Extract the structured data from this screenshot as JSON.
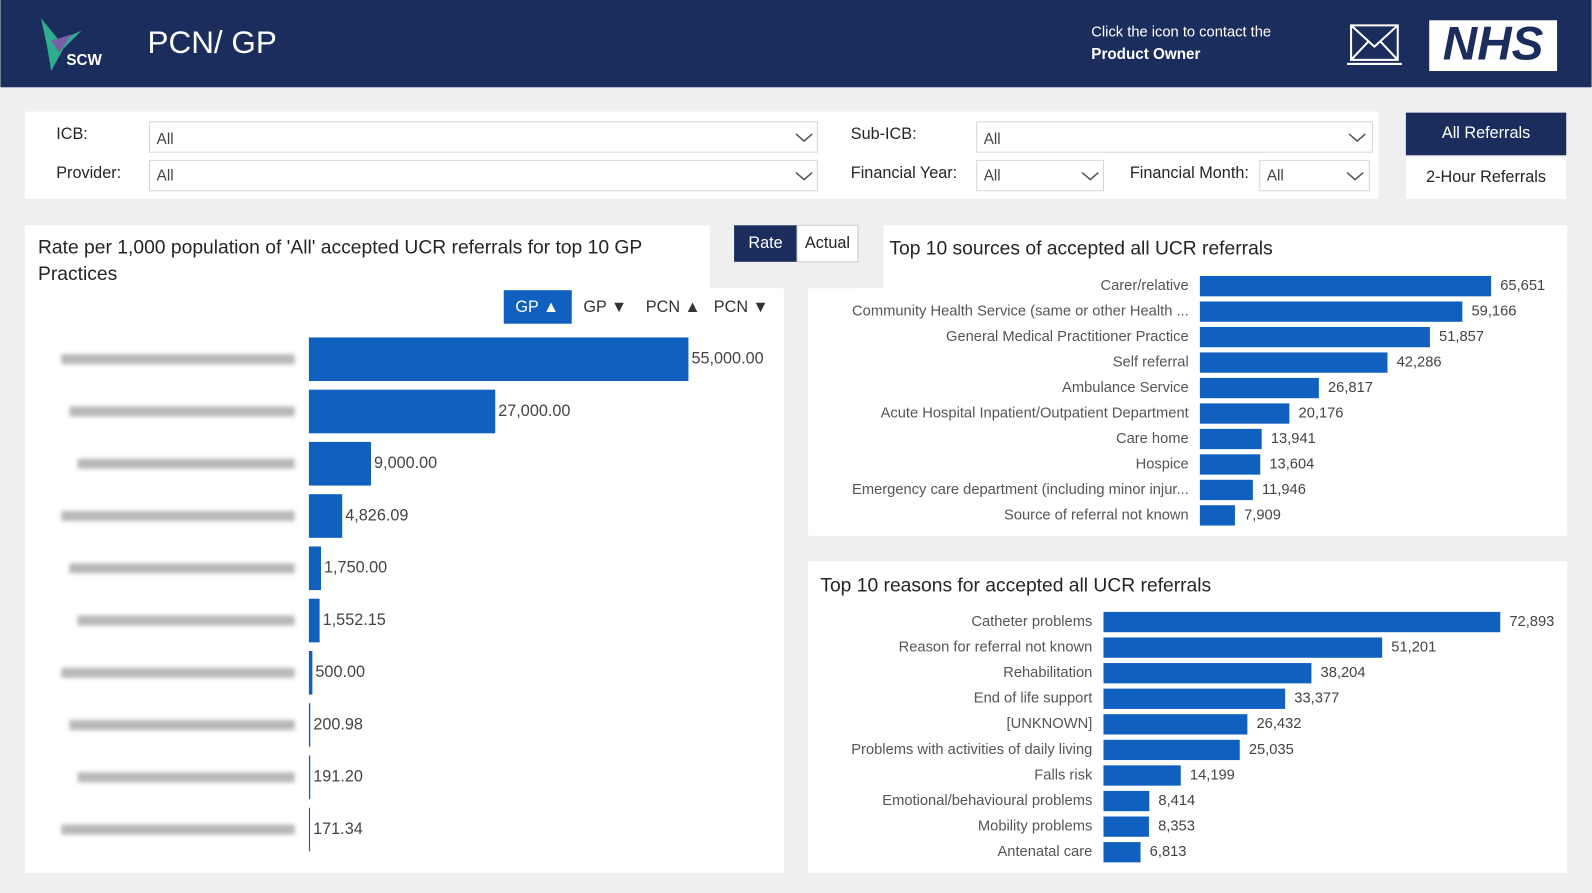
{
  "header": {
    "logo": "SCW",
    "title": "PCN/ GP",
    "contact_line1": "Click the icon to contact the",
    "contact_line2": "Product Owner",
    "nhs": "NHS"
  },
  "filters": [
    {
      "label": "ICB:",
      "value": "All"
    },
    {
      "label": "Provider:",
      "value": "All"
    },
    {
      "label": "Sub-ICB:",
      "value": "All"
    },
    {
      "label": "Financial Year:",
      "value": "All"
    },
    {
      "label": "Financial Month:",
      "value": "All"
    }
  ],
  "referral_buttons": [
    "All Referrals",
    "2-Hour Referrals"
  ],
  "measure_buttons": [
    "Rate",
    "Actual"
  ],
  "sort_buttons": [
    "GP ▲",
    "GP ▼",
    "PCN ▲",
    "PCN ▼"
  ],
  "chart_data": [
    {
      "type": "bar",
      "orientation": "horizontal",
      "title": "Rate per 1,000 population of 'All' accepted UCR referrals for top 10 GP Practices",
      "categories": [
        null,
        null,
        null,
        null,
        null,
        null,
        null,
        null,
        null,
        null
      ],
      "values": [
        55000,
        27000,
        9000,
        4826.09,
        1750,
        1552.15,
        500,
        200.98,
        191.2,
        171.34
      ],
      "value_labels": [
        "55,000.00",
        "27,000.00",
        "9,000.00",
        "4,826.09",
        "1,750.00",
        "1,552.15",
        "500.00",
        "200.98",
        "191.20",
        "171.34"
      ],
      "color": "#1060c0"
    },
    {
      "type": "bar",
      "orientation": "horizontal",
      "title": "Top 10 sources of accepted all UCR referrals",
      "categories": [
        "Carer/relative",
        "Community Health Service (same or other Health ...",
        "General Medical Practitioner Practice",
        "Self referral",
        "Ambulance Service",
        "Acute Hospital Inpatient/Outpatient Department",
        "Care home",
        "Hospice",
        "Emergency care department (including minor injur...",
        "Source of referral not known"
      ],
      "values": [
        65651,
        59166,
        51857,
        42286,
        26817,
        20176,
        13941,
        13604,
        11946,
        7909
      ],
      "value_labels": [
        "65,651",
        "59,166",
        "51,857",
        "42,286",
        "26,817",
        "20,176",
        "13,941",
        "13,604",
        "11,946",
        "7,909"
      ],
      "color": "#1060c0"
    },
    {
      "type": "bar",
      "orientation": "horizontal",
      "title": "Top 10 reasons for accepted all UCR referrals",
      "categories": [
        "Catheter problems",
        "Reason for referral not known",
        "Rehabilitation",
        "End of life support",
        "[UNKNOWN]",
        "Problems with activities of daily living",
        "Falls risk",
        "Emotional/behavioural problems",
        "Mobility problems",
        "Antenatal care"
      ],
      "values": [
        72893,
        51201,
        38204,
        33377,
        26432,
        25035,
        14199,
        8414,
        8353,
        6813
      ],
      "value_labels": [
        "72,893",
        "51,201",
        "38,204",
        "33,377",
        "26,432",
        "25,035",
        "14,199",
        "8,414",
        "8,353",
        "6,813"
      ],
      "color": "#1060c0"
    }
  ]
}
